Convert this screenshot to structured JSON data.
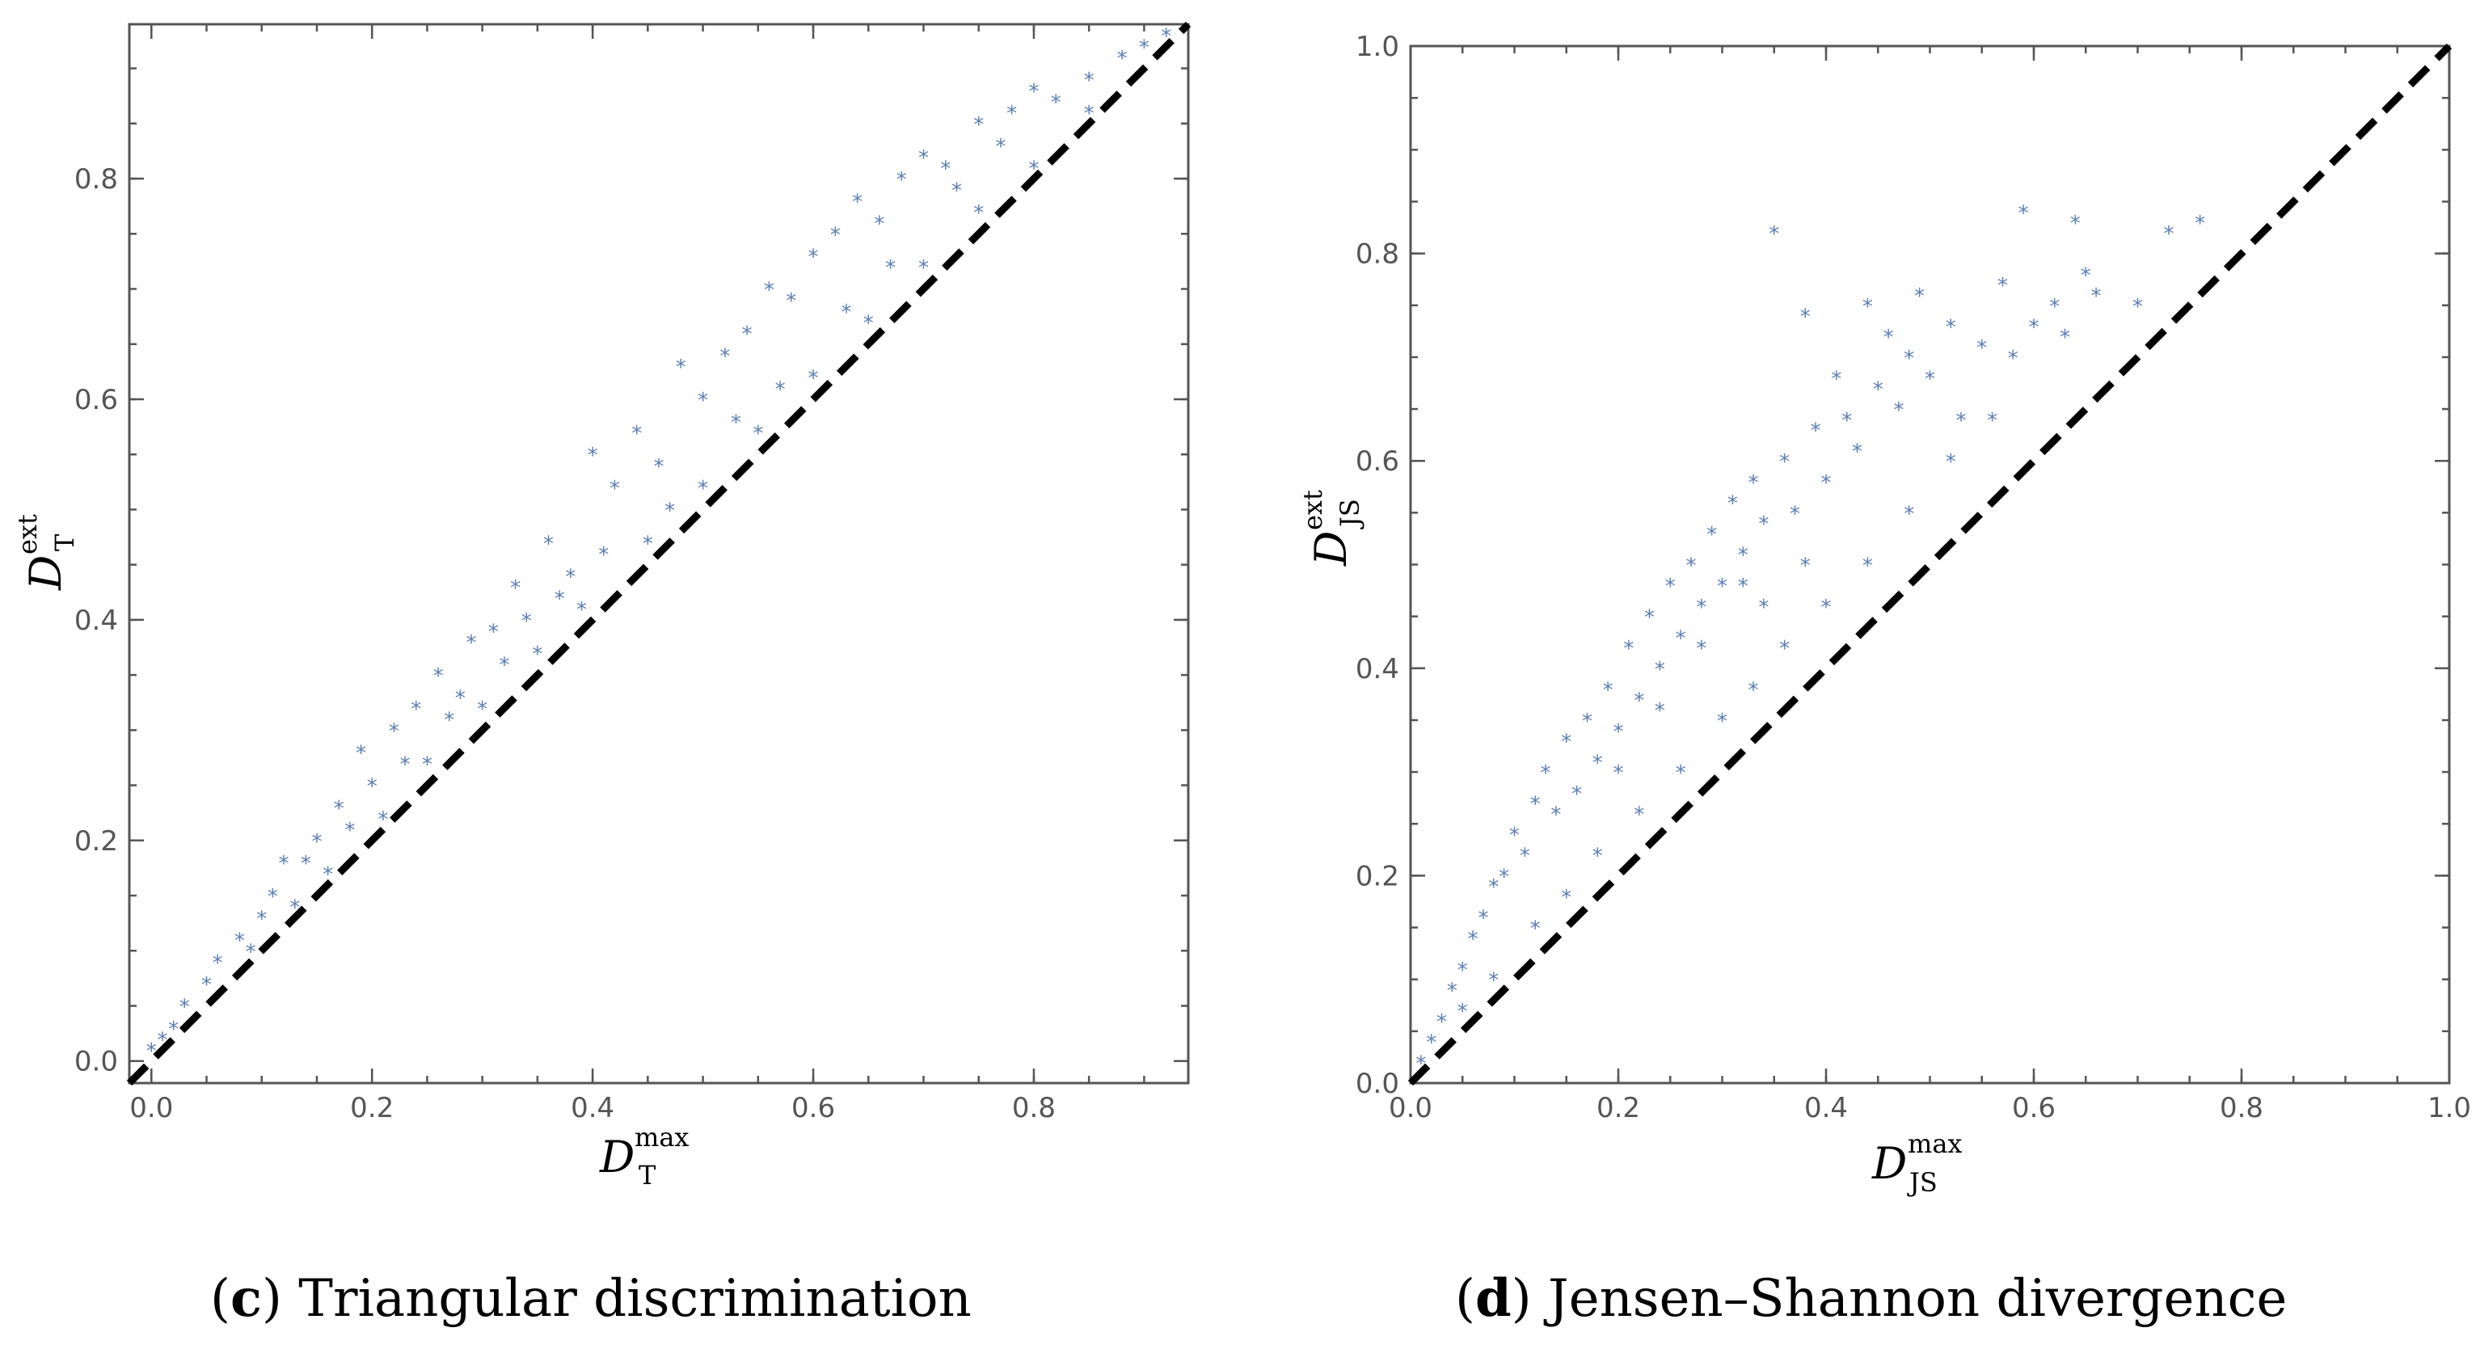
{
  "chart_data": [
    {
      "panel": "c",
      "type": "scatter",
      "caption_letter": "c",
      "caption_text": "Triangular discrimination",
      "xlabel_base": "D",
      "xlabel_sup": "max",
      "xlabel_sub": "T",
      "ylabel_base": "D",
      "ylabel_sup": "ext",
      "ylabel_sub": "T",
      "xlim": [
        -0.02,
        0.94
      ],
      "ylim": [
        -0.02,
        0.94
      ],
      "xticks": [
        0.0,
        0.2,
        0.4,
        0.6,
        0.8
      ],
      "yticks": [
        0.0,
        0.2,
        0.4,
        0.6,
        0.8
      ],
      "xtick_labels": [
        "0.0",
        "0.2",
        "0.4",
        "0.6",
        "0.8"
      ],
      "ytick_labels": [
        "0.0",
        "0.2",
        "0.4",
        "0.6",
        "0.8"
      ],
      "reference_line": "y = x (dashed)",
      "marker": "*",
      "marker_color": "#5b7fb5",
      "points": [
        [
          0.0,
          0.01
        ],
        [
          0.01,
          0.02
        ],
        [
          0.02,
          0.03
        ],
        [
          0.03,
          0.05
        ],
        [
          0.05,
          0.07
        ],
        [
          0.06,
          0.09
        ],
        [
          0.08,
          0.11
        ],
        [
          0.1,
          0.13
        ],
        [
          0.12,
          0.18
        ],
        [
          0.11,
          0.15
        ],
        [
          0.14,
          0.18
        ],
        [
          0.15,
          0.2
        ],
        [
          0.17,
          0.23
        ],
        [
          0.19,
          0.28
        ],
        [
          0.2,
          0.25
        ],
        [
          0.22,
          0.3
        ],
        [
          0.24,
          0.32
        ],
        [
          0.26,
          0.35
        ],
        [
          0.27,
          0.31
        ],
        [
          0.29,
          0.38
        ],
        [
          0.31,
          0.39
        ],
        [
          0.33,
          0.43
        ],
        [
          0.34,
          0.4
        ],
        [
          0.36,
          0.47
        ],
        [
          0.38,
          0.44
        ],
        [
          0.4,
          0.55
        ],
        [
          0.42,
          0.52
        ],
        [
          0.44,
          0.57
        ],
        [
          0.46,
          0.54
        ],
        [
          0.48,
          0.63
        ],
        [
          0.5,
          0.6
        ],
        [
          0.52,
          0.64
        ],
        [
          0.54,
          0.66
        ],
        [
          0.56,
          0.7
        ],
        [
          0.58,
          0.69
        ],
        [
          0.6,
          0.73
        ],
        [
          0.62,
          0.75
        ],
        [
          0.64,
          0.78
        ],
        [
          0.66,
          0.76
        ],
        [
          0.68,
          0.8
        ],
        [
          0.7,
          0.82
        ],
        [
          0.72,
          0.81
        ],
        [
          0.75,
          0.85
        ],
        [
          0.78,
          0.86
        ],
        [
          0.8,
          0.88
        ],
        [
          0.82,
          0.87
        ],
        [
          0.85,
          0.89
        ],
        [
          0.88,
          0.91
        ],
        [
          0.9,
          0.92
        ],
        [
          0.92,
          0.93
        ],
        [
          0.09,
          0.1
        ],
        [
          0.13,
          0.14
        ],
        [
          0.16,
          0.17
        ],
        [
          0.21,
          0.22
        ],
        [
          0.25,
          0.27
        ],
        [
          0.3,
          0.32
        ],
        [
          0.35,
          0.37
        ],
        [
          0.39,
          0.41
        ],
        [
          0.45,
          0.47
        ],
        [
          0.5,
          0.52
        ],
        [
          0.55,
          0.57
        ],
        [
          0.6,
          0.62
        ],
        [
          0.65,
          0.67
        ],
        [
          0.7,
          0.72
        ],
        [
          0.75,
          0.77
        ],
        [
          0.8,
          0.81
        ],
        [
          0.85,
          0.86
        ],
        [
          0.18,
          0.21
        ],
        [
          0.23,
          0.27
        ],
        [
          0.28,
          0.33
        ],
        [
          0.32,
          0.36
        ],
        [
          0.37,
          0.42
        ],
        [
          0.41,
          0.46
        ],
        [
          0.47,
          0.5
        ],
        [
          0.53,
          0.58
        ],
        [
          0.57,
          0.61
        ],
        [
          0.63,
          0.68
        ],
        [
          0.67,
          0.72
        ],
        [
          0.73,
          0.79
        ],
        [
          0.77,
          0.83
        ]
      ]
    },
    {
      "panel": "d",
      "type": "scatter",
      "caption_letter": "d",
      "caption_text": "Jensen–Shannon divergence",
      "xlabel_base": "D",
      "xlabel_sup": "max",
      "xlabel_sub": "JS",
      "ylabel_base": "D",
      "ylabel_sup": "ext",
      "ylabel_sub": "JS",
      "xlim": [
        0.0,
        1.0
      ],
      "ylim": [
        0.0,
        1.0
      ],
      "xticks": [
        0.0,
        0.2,
        0.4,
        0.6,
        0.8,
        1.0
      ],
      "yticks": [
        0.0,
        0.2,
        0.4,
        0.6,
        0.8,
        1.0
      ],
      "xtick_labels": [
        "0.0",
        "0.2",
        "0.4",
        "0.6",
        "0.8",
        "1.0"
      ],
      "ytick_labels": [
        "0.0",
        "0.2",
        "0.4",
        "0.6",
        "0.8",
        "1.0"
      ],
      "reference_line": "y = x (dashed)",
      "marker": "*",
      "marker_color": "#5b7fb5",
      "points": [
        [
          0.01,
          0.02
        ],
        [
          0.02,
          0.04
        ],
        [
          0.03,
          0.06
        ],
        [
          0.04,
          0.09
        ],
        [
          0.05,
          0.11
        ],
        [
          0.06,
          0.14
        ],
        [
          0.07,
          0.16
        ],
        [
          0.08,
          0.19
        ],
        [
          0.09,
          0.2
        ],
        [
          0.1,
          0.24
        ],
        [
          0.11,
          0.22
        ],
        [
          0.12,
          0.27
        ],
        [
          0.13,
          0.3
        ],
        [
          0.14,
          0.26
        ],
        [
          0.15,
          0.33
        ],
        [
          0.16,
          0.28
        ],
        [
          0.17,
          0.35
        ],
        [
          0.18,
          0.31
        ],
        [
          0.19,
          0.38
        ],
        [
          0.2,
          0.34
        ],
        [
          0.21,
          0.42
        ],
        [
          0.22,
          0.37
        ],
        [
          0.23,
          0.45
        ],
        [
          0.24,
          0.4
        ],
        [
          0.25,
          0.48
        ],
        [
          0.26,
          0.43
        ],
        [
          0.27,
          0.5
        ],
        [
          0.28,
          0.46
        ],
        [
          0.29,
          0.53
        ],
        [
          0.3,
          0.48
        ],
        [
          0.31,
          0.56
        ],
        [
          0.32,
          0.51
        ],
        [
          0.33,
          0.58
        ],
        [
          0.34,
          0.54
        ],
        [
          0.35,
          0.82
        ],
        [
          0.36,
          0.6
        ],
        [
          0.37,
          0.55
        ],
        [
          0.38,
          0.74
        ],
        [
          0.39,
          0.63
        ],
        [
          0.4,
          0.58
        ],
        [
          0.41,
          0.68
        ],
        [
          0.42,
          0.64
        ],
        [
          0.43,
          0.61
        ],
        [
          0.44,
          0.75
        ],
        [
          0.45,
          0.67
        ],
        [
          0.46,
          0.72
        ],
        [
          0.47,
          0.65
        ],
        [
          0.48,
          0.7
        ],
        [
          0.49,
          0.76
        ],
        [
          0.5,
          0.68
        ],
        [
          0.52,
          0.73
        ],
        [
          0.53,
          0.64
        ],
        [
          0.55,
          0.71
        ],
        [
          0.57,
          0.77
        ],
        [
          0.58,
          0.7
        ],
        [
          0.59,
          0.84
        ],
        [
          0.6,
          0.73
        ],
        [
          0.62,
          0.75
        ],
        [
          0.63,
          0.72
        ],
        [
          0.64,
          0.83
        ],
        [
          0.65,
          0.78
        ],
        [
          0.66,
          0.76
        ],
        [
          0.7,
          0.75
        ],
        [
          0.73,
          0.82
        ],
        [
          0.76,
          0.83
        ],
        [
          0.05,
          0.07
        ],
        [
          0.08,
          0.1
        ],
        [
          0.12,
          0.15
        ],
        [
          0.15,
          0.18
        ],
        [
          0.18,
          0.22
        ],
        [
          0.22,
          0.26
        ],
        [
          0.26,
          0.3
        ],
        [
          0.3,
          0.35
        ],
        [
          0.33,
          0.38
        ],
        [
          0.36,
          0.42
        ],
        [
          0.4,
          0.46
        ],
        [
          0.44,
          0.5
        ],
        [
          0.48,
          0.55
        ],
        [
          0.52,
          0.6
        ],
        [
          0.56,
          0.64
        ],
        [
          0.2,
          0.3
        ],
        [
          0.24,
          0.36
        ],
        [
          0.28,
          0.42
        ],
        [
          0.32,
          0.48
        ],
        [
          0.34,
          0.46
        ],
        [
          0.38,
          0.5
        ]
      ]
    }
  ]
}
